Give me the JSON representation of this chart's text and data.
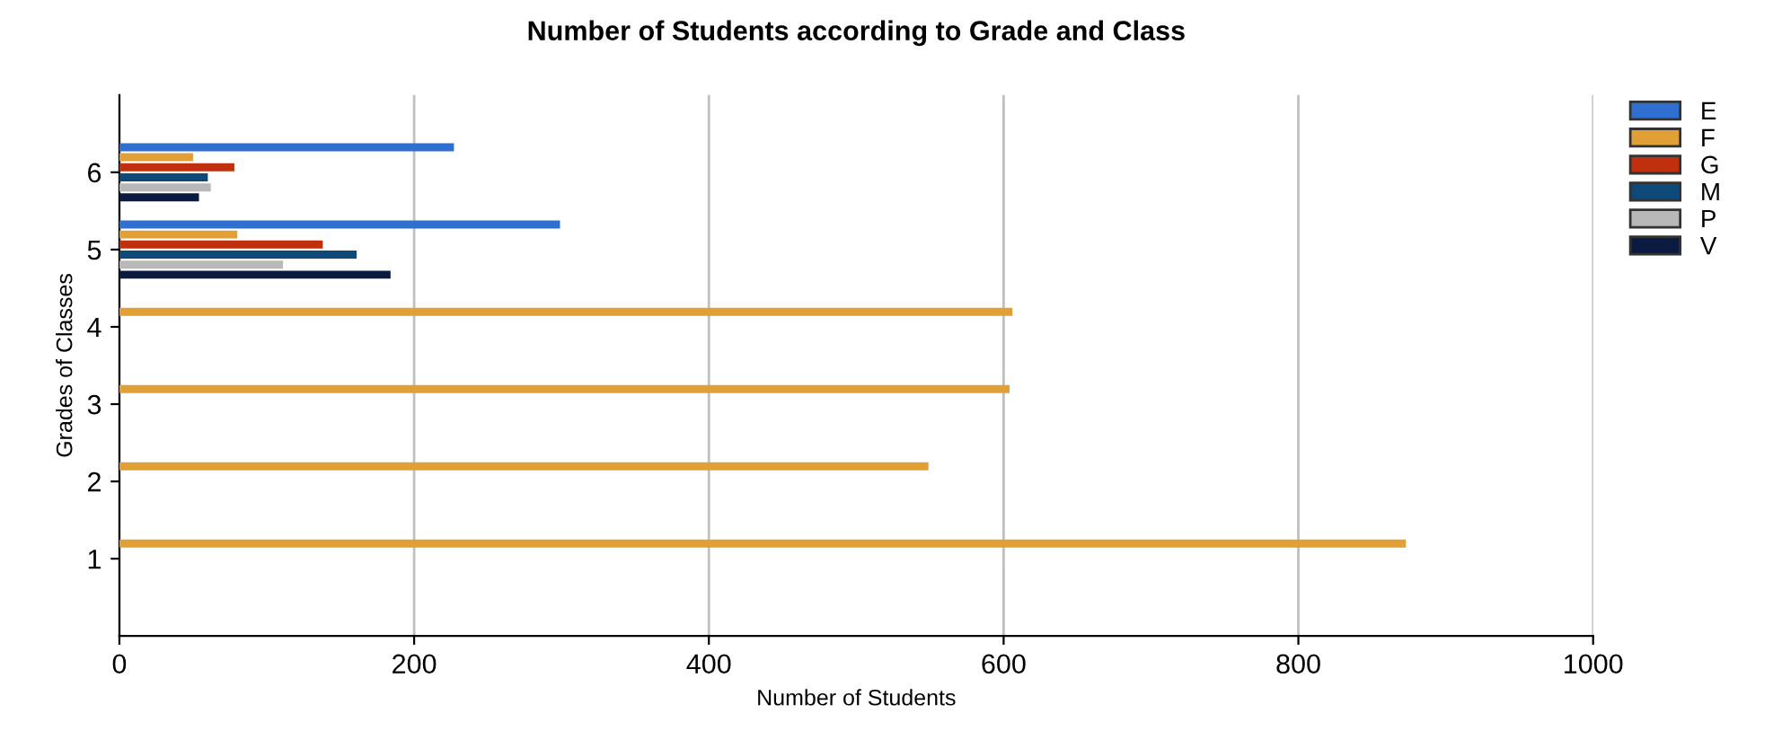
{
  "chart_data": {
    "type": "bar",
    "orientation": "horizontal",
    "title": "Number of Students according to Grade and Class",
    "xlabel": "Number of Students",
    "ylabel": "Grades of Classes",
    "categories": [
      "6",
      "5",
      "4",
      "3",
      "2",
      "1"
    ],
    "series": [
      {
        "name": "E",
        "color": "#2f6fd0",
        "values": [
          227,
          299,
          null,
          null,
          null,
          null
        ]
      },
      {
        "name": "F",
        "color": "#e0a035",
        "values": [
          50,
          80,
          606,
          604,
          549,
          873
        ]
      },
      {
        "name": "G",
        "color": "#c0300f",
        "values": [
          78,
          138,
          null,
          null,
          null,
          null
        ]
      },
      {
        "name": "M",
        "color": "#0d4a7a",
        "values": [
          60,
          161,
          null,
          null,
          null,
          null
        ]
      },
      {
        "name": "P",
        "color": "#b8b8b8",
        "values": [
          62,
          111,
          null,
          null,
          null,
          null
        ]
      },
      {
        "name": "V",
        "color": "#0a1a40",
        "values": [
          54,
          184,
          null,
          null,
          null,
          null
        ]
      }
    ],
    "xlim": [
      0,
      1000
    ],
    "xticks": [
      0,
      200,
      400,
      600,
      800,
      1000
    ],
    "grid": "x",
    "legend": "top right"
  }
}
